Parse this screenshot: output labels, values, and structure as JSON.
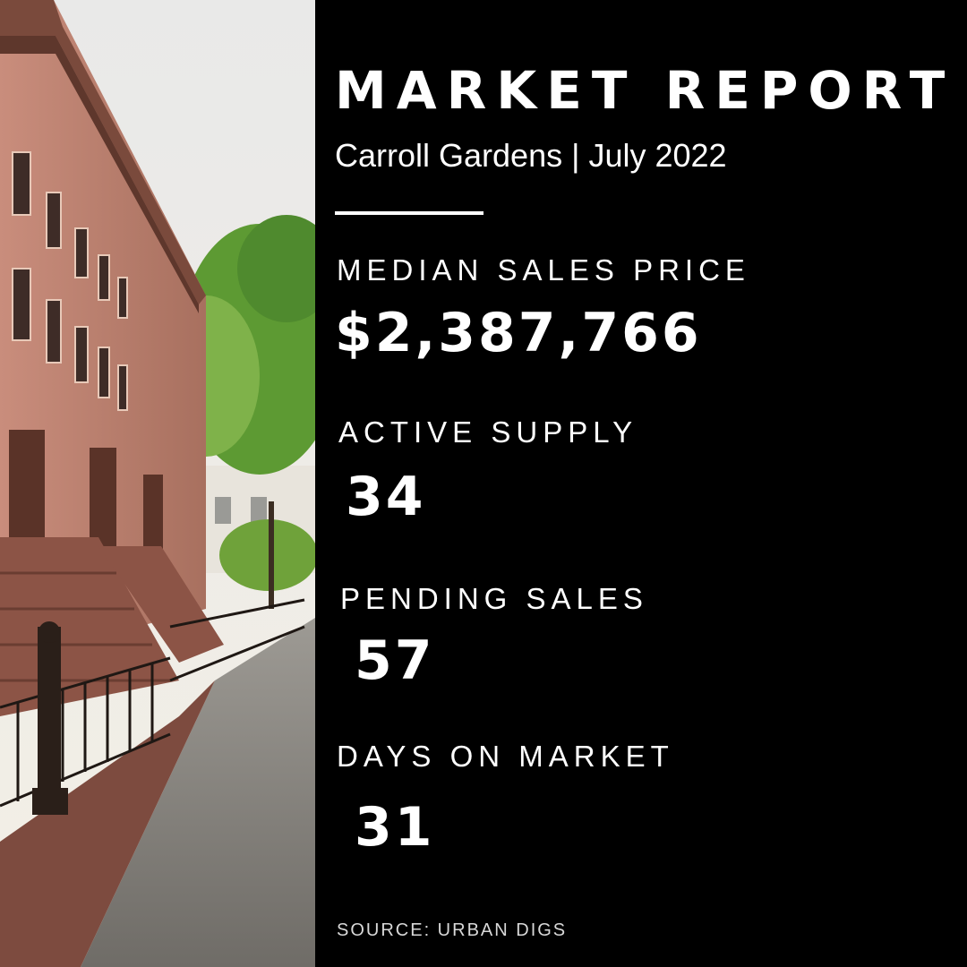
{
  "report": {
    "title": "MARKET REPORT",
    "subtitle": "Carroll Gardens | July 2022",
    "source": "SOURCE: URBAN DIGS"
  },
  "stats": {
    "median_sales_price": {
      "label": "MEDIAN SALES PRICE",
      "value": "$2,387,766"
    },
    "active_supply": {
      "label": "ACTIVE SUPPLY",
      "value": "34"
    },
    "pending_sales": {
      "label": "PENDING SALES",
      "value": "57"
    },
    "days_on_market": {
      "label": "DAYS ON MARKET",
      "value": "31"
    }
  },
  "colors": {
    "background": "#000000",
    "text": "#ffffff",
    "brownstone": "#b5776a",
    "foliage": "#4f8a2e"
  }
}
